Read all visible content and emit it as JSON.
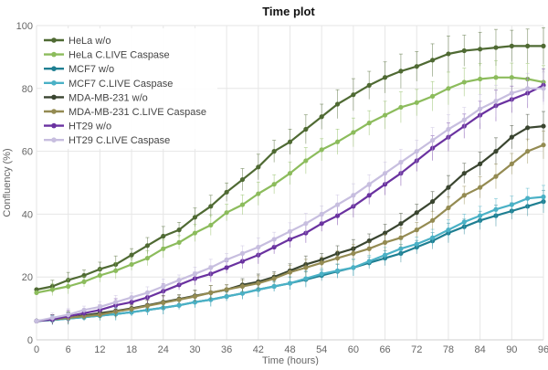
{
  "chart_data": {
    "type": "line",
    "title": "Time plot",
    "xlabel": "Time (hours)",
    "ylabel": "Confluency (%)",
    "xlim": [
      0,
      96
    ],
    "ylim": [
      0,
      100
    ],
    "xticks": [
      0,
      6,
      12,
      18,
      24,
      30,
      36,
      42,
      48,
      54,
      60,
      66,
      72,
      78,
      84,
      90,
      96
    ],
    "yticks": [
      0,
      20,
      40,
      60,
      80,
      100
    ],
    "grid": true,
    "legend_position": "top-left",
    "x": [
      0,
      3,
      6,
      9,
      12,
      15,
      18,
      21,
      24,
      27,
      30,
      33,
      36,
      39,
      42,
      45,
      48,
      51,
      54,
      57,
      60,
      63,
      66,
      69,
      72,
      75,
      78,
      81,
      84,
      87,
      90,
      93,
      96
    ],
    "series": [
      {
        "name": "HeLa w/o",
        "color": "#4f6a33",
        "values": [
          16,
          17,
          19,
          20.5,
          22.5,
          24,
          27,
          30,
          33,
          35,
          39,
          42.5,
          47,
          51,
          55,
          60,
          63,
          67,
          71,
          75,
          78,
          81,
          83.5,
          85.5,
          87,
          89,
          91,
          92,
          92.5,
          93,
          93.5,
          93.5,
          93.5
        ]
      },
      {
        "name": "HeLa C.LIVE Caspase",
        "color": "#8cbc5c",
        "values": [
          15,
          16,
          17,
          18.5,
          20.5,
          22,
          24,
          26,
          29,
          31,
          34,
          36.5,
          40.5,
          43,
          46.5,
          49.5,
          53,
          57,
          60.5,
          63,
          66,
          69,
          71.5,
          74,
          75.5,
          77.5,
          80,
          82,
          83,
          83.5,
          83.5,
          83,
          82
        ]
      },
      {
        "name": "MCF7 w/o",
        "color": "#1f7f92",
        "values": [
          6,
          6.3,
          6.8,
          7.2,
          7.7,
          8.2,
          8.8,
          9.5,
          10.2,
          11,
          12,
          12.8,
          13.8,
          14.8,
          16,
          17,
          18,
          19.2,
          20.5,
          21.8,
          23,
          24.5,
          26,
          27.5,
          29.5,
          31.5,
          34,
          36,
          38,
          39.5,
          41,
          42.5,
          44
        ]
      },
      {
        "name": "MCF7 C.LIVE Caspase",
        "color": "#4ab1c6",
        "values": [
          6,
          6.3,
          6.8,
          7.2,
          7.7,
          8.2,
          8.8,
          9.5,
          10.2,
          11,
          12,
          12.8,
          13.8,
          14.8,
          16,
          17,
          18,
          19.5,
          21,
          22,
          23,
          25,
          27,
          29,
          30.5,
          32.5,
          35,
          37.5,
          39.5,
          41.5,
          43,
          45,
          45.5
        ]
      },
      {
        "name": "MDA-MB-231 w/o",
        "color": "#3a4530",
        "values": [
          6,
          6.5,
          7,
          7.8,
          8.5,
          9.2,
          10,
          11,
          12,
          13,
          14,
          15,
          16,
          17.5,
          18.5,
          20,
          22,
          24,
          25.5,
          27.5,
          29,
          31.5,
          34,
          37,
          40.5,
          44,
          48.5,
          53,
          56,
          60,
          64.5,
          67.5,
          68
        ]
      },
      {
        "name": "MDA-MB-231 C.LIVE Caspase",
        "color": "#948b52",
        "values": [
          6,
          6.5,
          7,
          7.5,
          8,
          9,
          9.8,
          10.8,
          11.8,
          12.8,
          13.8,
          15,
          16,
          17,
          18,
          19.5,
          21.5,
          23,
          24.5,
          26,
          27.5,
          29,
          31,
          32.5,
          35,
          38,
          42,
          46,
          48.5,
          52,
          56,
          60,
          62
        ]
      },
      {
        "name": "HT29 w/o",
        "color": "#6a32a0",
        "values": [
          6,
          6.5,
          7.5,
          8.5,
          9.5,
          11,
          12,
          13.5,
          15.5,
          17.5,
          19.5,
          21,
          23,
          25,
          27,
          29.5,
          32,
          34,
          37,
          39.5,
          42.5,
          46,
          49.5,
          53,
          57,
          61,
          64.5,
          68,
          71.5,
          74.5,
          76.5,
          78.5,
          81
        ]
      },
      {
        "name": "HT29 C.LIVE Caspase",
        "color": "#c7bedf",
        "values": [
          6,
          7,
          8,
          9.5,
          10.5,
          12,
          13.5,
          15,
          17,
          19,
          21,
          23,
          25.5,
          27.5,
          29.5,
          32,
          34.5,
          37,
          40,
          43,
          46,
          49.5,
          53,
          56.5,
          60,
          63.5,
          67,
          70,
          73.5,
          76,
          78.5,
          80,
          80
        ]
      }
    ]
  }
}
